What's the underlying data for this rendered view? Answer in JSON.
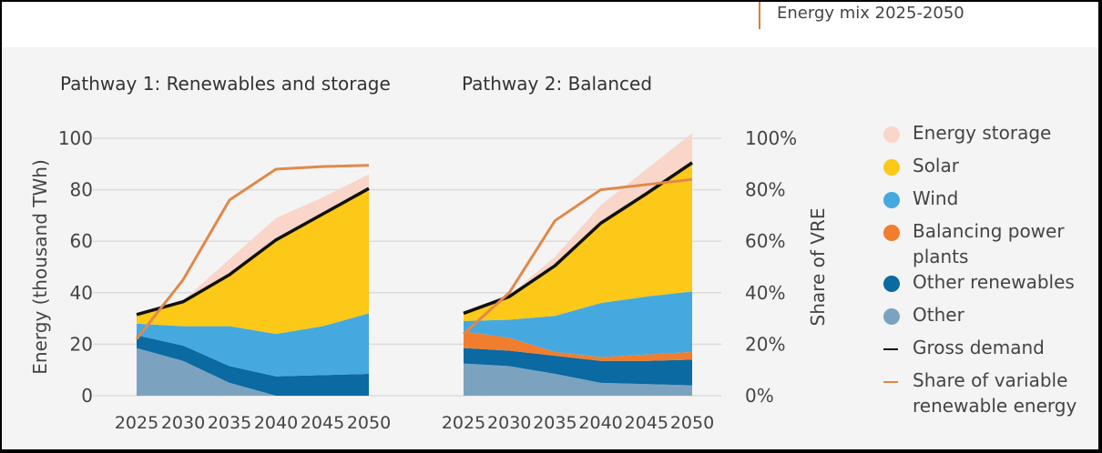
{
  "header": {
    "title": "Energy mix 2025-2050",
    "accent_color": "#e07b39"
  },
  "chart_data": [
    {
      "type": "area",
      "title": "Pathway 1: Renewables and storage",
      "xlabel": "",
      "ylabel": "Energy (thousand TWh)",
      "ylim": [
        0,
        100
      ],
      "yticks": [
        "0",
        "20",
        "40",
        "60",
        "80",
        "100"
      ],
      "x": [
        "2025",
        "2030",
        "2035",
        "2040",
        "2045",
        "2050"
      ],
      "grid": true,
      "series": [
        {
          "name": "Other",
          "color": "#7ba3bf",
          "values": [
            18.5,
            13.5,
            5,
            0,
            0,
            0
          ]
        },
        {
          "name": "Other renewables",
          "color": "#0a6aa1",
          "values": [
            5,
            6,
            6.5,
            7.5,
            8,
            8.5
          ]
        },
        {
          "name": "Balancing power plants",
          "color": "#f07e2e",
          "values": [
            0,
            0,
            0,
            0,
            0,
            0
          ]
        },
        {
          "name": "Wind",
          "color": "#45a9e0",
          "values": [
            4.5,
            7.5,
            15.5,
            16.5,
            19,
            23.5
          ]
        },
        {
          "name": "Solar",
          "color": "#fdc918",
          "values": [
            3,
            9.5,
            20,
            36.5,
            43.5,
            48.5
          ]
        },
        {
          "name": "Energy storage",
          "color": "#f9d6c9",
          "values": [
            0,
            0.5,
            6,
            8.5,
            6.5,
            5.5
          ]
        }
      ],
      "gross_demand": [
        31.5,
        36.5,
        47,
        60.5,
        70.5,
        80.5
      ],
      "vre_share_pct": [
        22,
        45,
        76,
        88,
        89,
        89.5
      ]
    },
    {
      "type": "area",
      "title": "Pathway 2: Balanced",
      "xlabel": "",
      "ylabel": "Share of VRE",
      "ylim": [
        0,
        100
      ],
      "y2ticks": [
        "0%",
        "20%",
        "40%",
        "60%",
        "80%",
        "100%"
      ],
      "x": [
        "2025",
        "2030",
        "2035",
        "2040",
        "2045",
        "2050"
      ],
      "grid": true,
      "series": [
        {
          "name": "Other",
          "color": "#7ba3bf",
          "values": [
            12.5,
            11.5,
            8.5,
            5,
            4.5,
            4
          ]
        },
        {
          "name": "Other renewables",
          "color": "#0a6aa1",
          "values": [
            6,
            6,
            7,
            8.5,
            9,
            10
          ]
        },
        {
          "name": "Balancing power plants",
          "color": "#f07e2e",
          "values": [
            6.5,
            5,
            1.5,
            1.5,
            2.5,
            3
          ]
        },
        {
          "name": "Wind",
          "color": "#45a9e0",
          "values": [
            4,
            7,
            14,
            21,
            22.5,
            23.5
          ]
        },
        {
          "name": "Solar",
          "color": "#fdc918",
          "values": [
            3,
            9,
            19.5,
            31,
            39.5,
            49.5
          ]
        },
        {
          "name": "Energy storage",
          "color": "#f9d6c9",
          "values": [
            0,
            0.5,
            3.5,
            7,
            10,
            12
          ]
        }
      ],
      "gross_demand": [
        32,
        38.5,
        50.5,
        67,
        78.5,
        90.5
      ],
      "vre_share_pct": [
        24,
        40,
        68,
        80,
        82,
        84
      ]
    }
  ],
  "legend": [
    {
      "name": "Energy storage",
      "kind": "dot",
      "color": "#f9d6c9"
    },
    {
      "name": "Solar",
      "kind": "dot",
      "color": "#fdc918"
    },
    {
      "name": "Wind",
      "kind": "dot",
      "color": "#45a9e0"
    },
    {
      "name": "Balancing power plants",
      "kind": "dot",
      "color": "#f07e2e"
    },
    {
      "name": "Other renewables",
      "kind": "dot",
      "color": "#0a6aa1"
    },
    {
      "name": "Other",
      "kind": "dot",
      "color": "#7ba3bf"
    },
    {
      "name": "Gross demand",
      "kind": "line",
      "color": "#111111"
    },
    {
      "name": "Share of variable renewable energy",
      "kind": "line",
      "color": "#e0894a"
    }
  ]
}
